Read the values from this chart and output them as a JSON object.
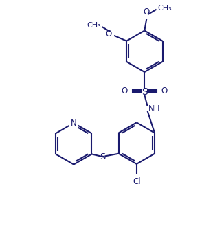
{
  "background_color": "#ffffff",
  "line_color": "#1a1a6e",
  "line_width": 1.5,
  "font_size": 8.5,
  "figsize": [
    2.94,
    3.51
  ],
  "dpi": 100,
  "xlim": [
    0,
    10
  ],
  "ylim": [
    0,
    12
  ]
}
